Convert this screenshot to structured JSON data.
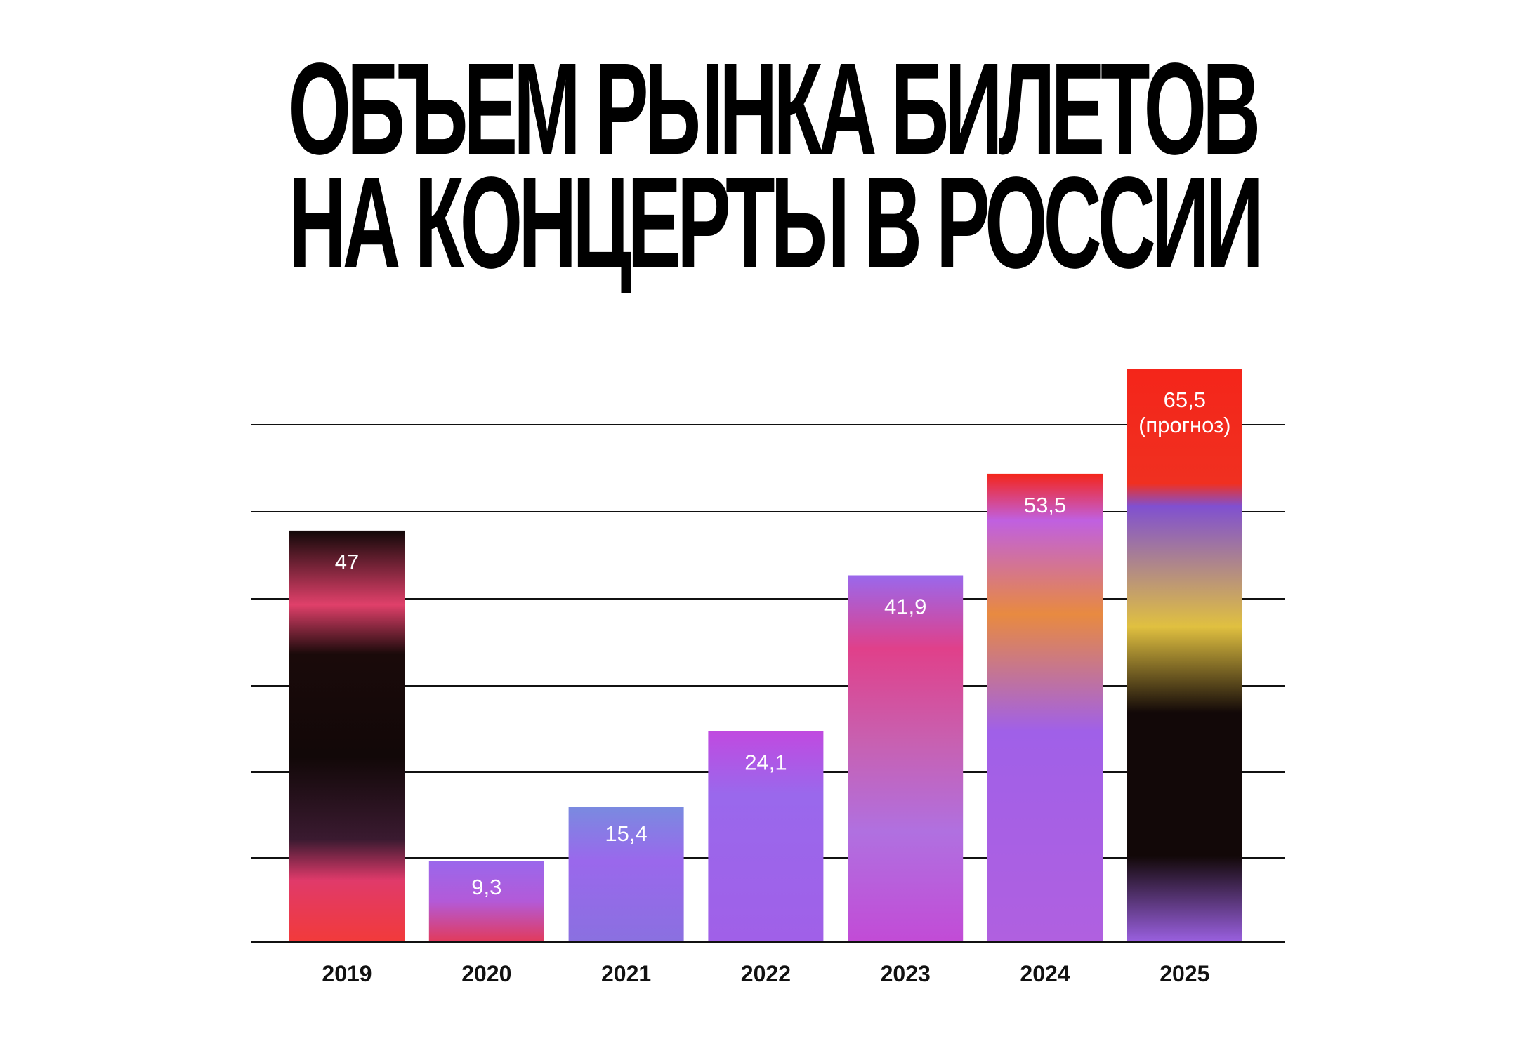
{
  "title": {
    "line1": "ОБЪЕМ РЫНКА БИЛЕТОВ",
    "line2": "НА КОНЦЕРТЫ В РОССИИ"
  },
  "colors": {
    "background": "#ffffff",
    "text": "#000000",
    "gridline": "#111111",
    "bar_purple": "#9a68ec",
    "bar_magenta": "#c24bd6",
    "bar_red": "#f4251a",
    "bar_black": "#120808",
    "label": "#ffffff"
  },
  "chart_data": {
    "type": "bar",
    "title": "ОБЪЕМ РЫНКА БИЛЕТОВ НА КОНЦЕРТЫ В РОССИИ",
    "xlabel": "",
    "ylabel": "",
    "categories": [
      "2019",
      "2020",
      "2021",
      "2022",
      "2023",
      "2024",
      "2025"
    ],
    "values": [
      47,
      9.3,
      15.4,
      24.1,
      41.9,
      53.5,
      65.5
    ],
    "data_labels": [
      "47",
      "9,3",
      "15,4",
      "24,1",
      "41,9",
      "53,5",
      "65,5"
    ],
    "data_label_notes": [
      "",
      "",
      "",
      "",
      "",
      "",
      "(прогноз)"
    ],
    "ylim": [
      0,
      66.5
    ],
    "grid": true,
    "legend": "none"
  }
}
